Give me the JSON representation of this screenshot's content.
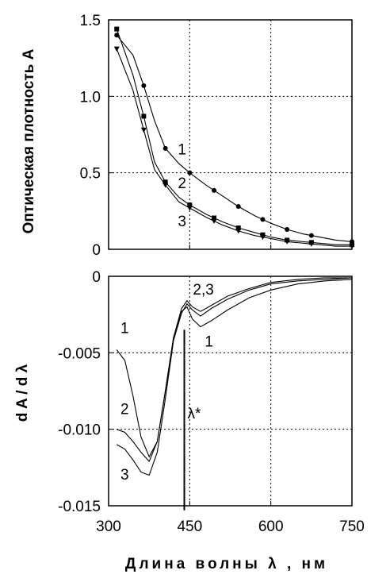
{
  "chart_data": [
    {
      "type": "line",
      "ylabel": "Оптическая  плотность A",
      "xlim": [
        300,
        750
      ],
      "ylim": [
        0,
        1.5
      ],
      "xticks": [
        300,
        450,
        600,
        750
      ],
      "yticks": [
        0,
        0.5,
        1.0,
        1.5
      ],
      "ytick_labels": [
        "0",
        "0.5",
        "1.0",
        "1.5"
      ],
      "grid": "dotted",
      "series": [
        {
          "name": "1",
          "x": [
            315,
            345,
            365,
            385,
            405,
            430,
            450,
            480,
            510,
            540,
            570,
            600,
            630,
            660,
            690,
            720,
            750
          ],
          "y": [
            1.4,
            1.27,
            1.07,
            0.84,
            0.66,
            0.56,
            0.5,
            0.42,
            0.35,
            0.28,
            0.22,
            0.17,
            0.13,
            0.1,
            0.08,
            0.06,
            0.05
          ],
          "markers_x": [
            315,
            365,
            405,
            450,
            495,
            540,
            585,
            630,
            675,
            750
          ],
          "marker": "circle"
        },
        {
          "name": "2",
          "x": [
            315,
            345,
            365,
            385,
            405,
            430,
            450,
            480,
            510,
            540,
            570,
            600,
            630,
            660,
            690,
            720,
            750
          ],
          "y": [
            1.44,
            1.14,
            0.87,
            0.57,
            0.44,
            0.34,
            0.29,
            0.23,
            0.18,
            0.14,
            0.11,
            0.08,
            0.06,
            0.05,
            0.04,
            0.03,
            0.03
          ],
          "markers_x": [
            315,
            365,
            405,
            450,
            495,
            540,
            585,
            630,
            675,
            750
          ],
          "marker": "square"
        },
        {
          "name": "3",
          "x": [
            315,
            345,
            365,
            385,
            405,
            430,
            450,
            480,
            510,
            540,
            570,
            600,
            630,
            660,
            690,
            720,
            750
          ],
          "y": [
            1.31,
            1.04,
            0.78,
            0.52,
            0.42,
            0.31,
            0.27,
            0.21,
            0.16,
            0.12,
            0.09,
            0.07,
            0.05,
            0.04,
            0.03,
            0.02,
            0.02
          ],
          "markers_x": [
            315,
            365,
            405,
            450,
            495,
            540,
            585,
            630,
            675,
            750
          ],
          "marker": "triangle-down"
        }
      ],
      "curve_labels": [
        {
          "text": "1",
          "x": 428,
          "y": 0.62
        },
        {
          "text": "2",
          "x": 428,
          "y": 0.4
        },
        {
          "text": "3",
          "x": 428,
          "y": 0.15
        }
      ]
    },
    {
      "type": "line",
      "xlabel": "Длина волны λ , нм",
      "ylabel": "d A / d λ",
      "xlim": [
        300,
        750
      ],
      "ylim": [
        -0.015,
        0
      ],
      "xticks": [
        300,
        450,
        600,
        750
      ],
      "xtick_labels": [
        "300",
        "450",
        "600",
        "750"
      ],
      "yticks": [
        -0.015,
        -0.01,
        -0.005,
        0
      ],
      "ytick_labels": [
        "-0.015",
        "-0.010",
        "-0.005",
        "0"
      ],
      "grid": "dotted",
      "series": [
        {
          "name": "1",
          "x": [
            315,
            330,
            345,
            360,
            375,
            390,
            405,
            420,
            435,
            445,
            455,
            470,
            490,
            520,
            560,
            600,
            650,
            700,
            750
          ],
          "y": [
            -0.0048,
            -0.0055,
            -0.0078,
            -0.0105,
            -0.0118,
            -0.0108,
            -0.0075,
            -0.004,
            -0.0023,
            -0.002,
            -0.0028,
            -0.0033,
            -0.0029,
            -0.0022,
            -0.0014,
            -0.0009,
            -0.0005,
            -0.0003,
            -0.0002
          ]
        },
        {
          "name": "2",
          "x": [
            315,
            330,
            345,
            360,
            375,
            390,
            405,
            420,
            435,
            445,
            455,
            470,
            490,
            520,
            560,
            600,
            650,
            700,
            750
          ],
          "y": [
            -0.01,
            -0.0102,
            -0.0108,
            -0.0115,
            -0.0121,
            -0.0108,
            -0.0075,
            -0.004,
            -0.0021,
            -0.0016,
            -0.002,
            -0.0023,
            -0.0019,
            -0.0013,
            -0.0008,
            -0.0004,
            -0.0002,
            -0.0001,
            -0.0001
          ]
        },
        {
          "name": "3",
          "x": [
            315,
            330,
            345,
            360,
            375,
            390,
            405,
            420,
            435,
            445,
            455,
            470,
            490,
            520,
            560,
            600,
            650,
            700,
            750
          ],
          "y": [
            -0.011,
            -0.0113,
            -0.012,
            -0.0128,
            -0.013,
            -0.0115,
            -0.008,
            -0.0042,
            -0.0024,
            -0.0018,
            -0.0022,
            -0.0026,
            -0.0021,
            -0.0015,
            -0.0009,
            -0.0005,
            -0.0003,
            -0.0002,
            -0.0001
          ]
        }
      ],
      "curve_labels": [
        {
          "text": "1",
          "x": 322,
          "y": -0.0037
        },
        {
          "text": "2",
          "x": 322,
          "y": -0.009
        },
        {
          "text": "3",
          "x": 322,
          "y": -0.0133
        },
        {
          "text": "1",
          "x": 478,
          "y": -0.0046
        },
        {
          "text": "2,3",
          "x": 456,
          "y": -0.0012
        }
      ],
      "marker_line": {
        "label": "λ*",
        "x": 440,
        "y_from": -0.0153,
        "y_to": -0.0035
      }
    }
  ]
}
